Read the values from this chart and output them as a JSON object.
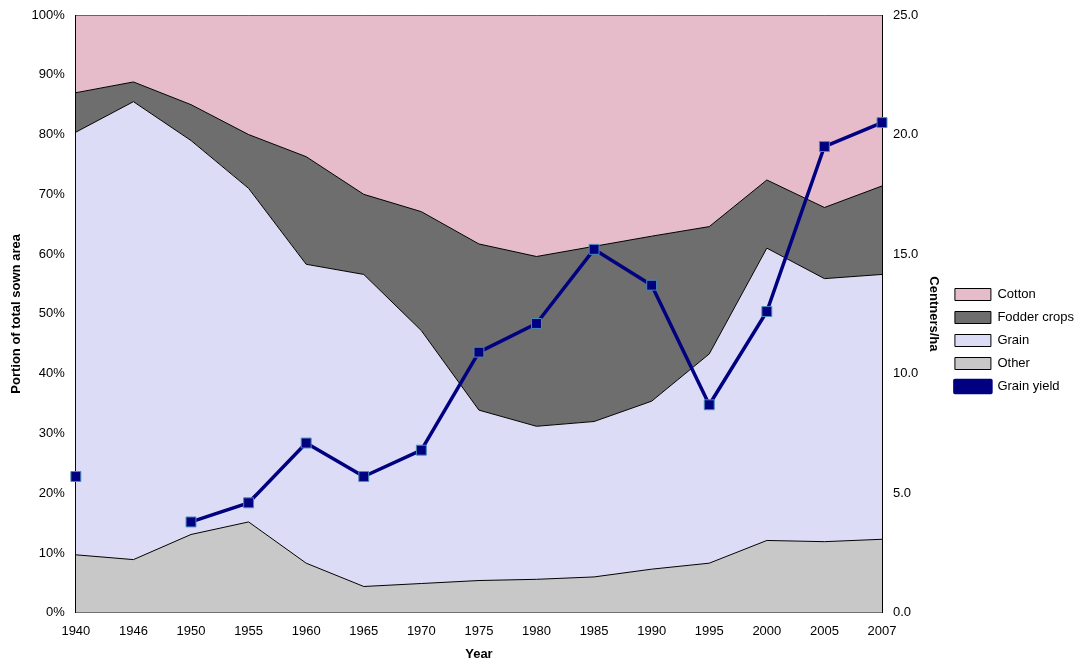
{
  "chart_data": {
    "type": "area",
    "stacked": true,
    "xlabel": "Year",
    "ylabel": "Portion of total sown area",
    "y2label": "Centners/ha",
    "categories": [
      "1940",
      "1946",
      "1950",
      "1955",
      "1960",
      "1965",
      "1970",
      "1975",
      "1980",
      "1985",
      "1990",
      "1995",
      "2000",
      "2005",
      "2007"
    ],
    "series": [
      {
        "name": "Other",
        "color": "#c8c8c8",
        "values": [
          9.7,
          8.9,
          13.1,
          15.2,
          8.3,
          4.4,
          4.9,
          5.4,
          5.6,
          6.0,
          7.3,
          8.3,
          12.1,
          11.9,
          12.3
        ]
      },
      {
        "name": "Grain",
        "color": "#dcdcf6",
        "values": [
          70.7,
          76.6,
          65.9,
          55.8,
          50.0,
          52.2,
          42.3,
          28.5,
          25.6,
          26.0,
          28.1,
          35.0,
          48.9,
          44.0,
          44.3
        ]
      },
      {
        "name": "Fodder crops",
        "color": "#6e6e6e",
        "values": [
          6.6,
          3.3,
          6.0,
          9.0,
          18.0,
          13.4,
          19.9,
          27.8,
          28.4,
          29.3,
          27.6,
          21.3,
          11.4,
          11.9,
          14.8
        ]
      },
      {
        "name": "Cotton",
        "color": "#e6bccb",
        "values": [
          13.0,
          11.2,
          15.0,
          20.0,
          23.7,
          30.0,
          32.9,
          38.3,
          40.4,
          38.7,
          37.0,
          35.4,
          27.6,
          32.2,
          28.6
        ]
      },
      {
        "name": "Grain yield",
        "type": "line",
        "axis": "y2",
        "color": "#000080",
        "marker": "square",
        "values": [
          5.7,
          null,
          3.8,
          4.6,
          7.1,
          5.7,
          6.8,
          10.9,
          12.1,
          15.2,
          13.7,
          8.7,
          12.6,
          19.5,
          20.5
        ]
      }
    ],
    "ylim": [
      0,
      100
    ],
    "yticks": [
      {
        "value": 0,
        "label": "0%"
      },
      {
        "value": 10,
        "label": "10%"
      },
      {
        "value": 20,
        "label": "20%"
      },
      {
        "value": 30,
        "label": "30%"
      },
      {
        "value": 40,
        "label": "40%"
      },
      {
        "value": 50,
        "label": "50%"
      },
      {
        "value": 60,
        "label": "60%"
      },
      {
        "value": 70,
        "label": "70%"
      },
      {
        "value": 80,
        "label": "80%"
      },
      {
        "value": 90,
        "label": "90%"
      },
      {
        "value": 100,
        "label": "100%"
      }
    ],
    "y2lim": [
      0,
      25
    ],
    "y2ticks": [
      {
        "value": 0,
        "label": "0.0"
      },
      {
        "value": 5,
        "label": "5.0"
      },
      {
        "value": 10,
        "label": "10.0"
      },
      {
        "value": 15,
        "label": "15.0"
      },
      {
        "value": 20,
        "label": "20.0"
      },
      {
        "value": 25,
        "label": "25.0"
      }
    ],
    "grid": false,
    "legend": "right"
  }
}
